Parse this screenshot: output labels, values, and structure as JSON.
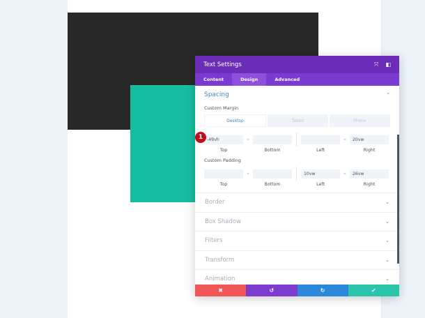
{
  "modal": {
    "title": "Text Settings",
    "expand_icon": "expand-icon",
    "sidebar_icon": "sidebar-layout-icon",
    "tabs": [
      "Content",
      "Design",
      "Advanced"
    ],
    "active_tab": "Design"
  },
  "spacing": {
    "title": "Spacing",
    "margin_label": "Custom Margin",
    "devices": [
      "Desktop",
      "Tablet",
      "Phone"
    ],
    "margin": {
      "top": "-49vh",
      "bottom": "",
      "left": "",
      "right": "20vw"
    },
    "padding_label": "Custom Padding",
    "padding": {
      "top": "",
      "bottom": "",
      "left": "10vw",
      "right": "26vw"
    },
    "captions": [
      "Top",
      "Bottom",
      "Left",
      "Right"
    ]
  },
  "sections": [
    "Border",
    "Box Shadow",
    "Filters",
    "Transform",
    "Animation"
  ],
  "badge": "1",
  "footer": {
    "cancel": "✖",
    "undo": "↺",
    "redo": "↻",
    "save": "✔"
  },
  "colors": {
    "header": "#6c2eb9",
    "cancel": "#ef5555",
    "undo": "#7e3bd0",
    "redo": "#2b87da",
    "save": "#29c4a9"
  }
}
